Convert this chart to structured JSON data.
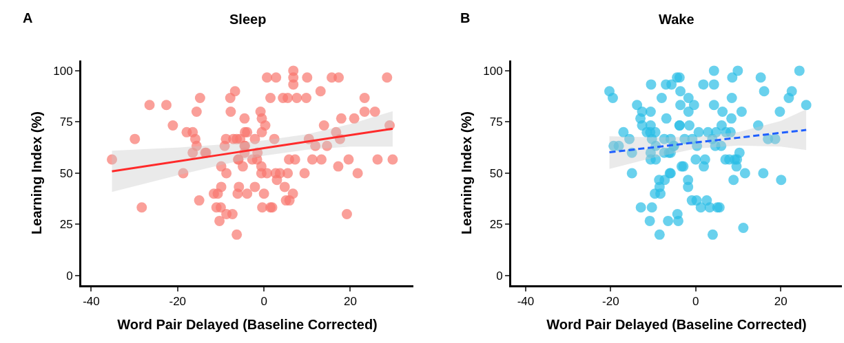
{
  "chart_data": [
    {
      "type": "scatter",
      "title": "Sleep",
      "xlabel": "Word Pair Delayed (Baseline Corrected)",
      "ylabel": "Learning Index (%)",
      "annotations": [
        "A"
      ],
      "xlim": [
        -42.3,
        34.6
      ],
      "ylim": [
        -4.7,
        105
      ],
      "xticks": [
        -40,
        -20,
        0,
        20
      ],
      "yticks": [
        0,
        25,
        50,
        75,
        100
      ],
      "series": [
        {
          "marker": "circle",
          "color": "#f8766d",
          "x": [
            -35.2,
            -29.9,
            -28.3,
            -26.5,
            -22.6,
            -21.1,
            -18.7,
            -17.9,
            -16.5,
            -15.9,
            -15.6,
            -15.6,
            -16.5,
            -15.0,
            -14.8,
            -13.6,
            -13.4,
            -11.6,
            -10.7,
            -11.0,
            -10.0,
            -10.3,
            -8.7,
            -7.3,
            -9.9,
            -9.9,
            -8.7,
            -9.1,
            -8.8,
            -7.8,
            -7.7,
            -6.7,
            -7.1,
            -6.3,
            -5.5,
            -6.3,
            -6.0,
            -6.1,
            -5.8,
            -4.9,
            -4.5,
            -4.4,
            -4.4,
            -5.9,
            -3.9,
            -3.9,
            -4.5,
            -4.5,
            -2.7,
            -1.6,
            -2.1,
            -2.1,
            -1.5,
            -0.8,
            -0.5,
            0.3,
            -0.5,
            -0.6,
            -0.6,
            0.7,
            0.0,
            -0.4,
            1.5,
            1.9,
            0.7,
            2.8,
            1.5,
            2.4,
            2.7,
            3.7,
            3.0,
            5.5,
            4.8,
            5.8,
            7.2,
            5.1,
            5.9,
            6.7,
            4.4,
            5.5,
            7.6,
            9.8,
            6.8,
            6.8,
            6.8,
            10.0,
            13.1,
            9.4,
            11.2,
            13.3,
            10.4,
            11.9,
            14.6,
            13.9,
            15.7,
            17.3,
            16.7,
            17.6,
            17.9,
            17.2,
            19.6,
            19.2,
            20.9,
            21.7,
            23.3,
            23.3,
            25.7,
            26.3,
            28.5,
            29.1,
            29.8
          ],
          "values": [
            56.7,
            66.7,
            33.3,
            83.3,
            83.3,
            73.3,
            50,
            70,
            70,
            66.7,
            63.3,
            80,
            60,
            36.7,
            86.7,
            60,
            60,
            40,
            40,
            33.3,
            33.3,
            26.7,
            30,
            30,
            43.3,
            53.3,
            50,
            63.3,
            66.7,
            86.7,
            80,
            90,
            66.7,
            66.7,
            66.7,
            20,
            56.7,
            40,
            43.3,
            53.3,
            76.7,
            70,
            63.3,
            56.7,
            40,
            70,
            63.3,
            60,
            56.7,
            56.7,
            66.7,
            43.3,
            60,
            80,
            76.7,
            73.3,
            70,
            53.3,
            50,
            50,
            40,
            33.3,
            33.3,
            33.3,
            96.7,
            96.7,
            86.7,
            66.7,
            50,
            50,
            46.7,
            50,
            43.3,
            56.7,
            56.7,
            36.7,
            36.7,
            40,
            86.7,
            86.7,
            86.7,
            86.7,
            100,
            96.7,
            93.3,
            96.7,
            90,
            50,
            56.7,
            56.7,
            66.7,
            63.3,
            63.3,
            73.3,
            96.7,
            96.7,
            70,
            66.7,
            76.7,
            53.3,
            56.7,
            30,
            76.7,
            50,
            86.7,
            80,
            80,
            56.7,
            96.7,
            73.3,
            56.7
          ]
        },
        {
          "type": "line",
          "color": "#ff2a2a",
          "line_style": "solid",
          "x": [
            -35.2,
            -20,
            -10,
            0,
            10,
            20,
            29.8
          ],
          "values": [
            50.9,
            55.8,
            59.0,
            62.2,
            65.4,
            68.6,
            71.7
          ],
          "lower": [
            40.8,
            49,
            54,
            58.5,
            61.5,
            63,
            63
          ],
          "upper": [
            61,
            62.5,
            64,
            66,
            69,
            74,
            80.3
          ]
        }
      ]
    },
    {
      "type": "scatter",
      "title": "Wake",
      "xlabel": "Word Pair Delayed (Baseline Corrected)",
      "ylabel": "Learning Index (%)",
      "annotations": [
        "B"
      ],
      "xlim": [
        -43.4,
        34.4
      ],
      "ylim": [
        -4.7,
        105
      ],
      "xticks": [
        -40,
        -20,
        0,
        20
      ],
      "yticks": [
        0,
        25,
        50,
        75,
        100
      ],
      "series": [
        {
          "marker": "circle",
          "color": "#29bde6",
          "x": [
            -20.3,
            -19.5,
            -19.3,
            -18.1,
            -17.0,
            -15.6,
            -15.0,
            -15.0,
            -13.8,
            -12.6,
            -13.0,
            -12.6,
            -10.5,
            -10.6,
            -10.6,
            -11.5,
            -10.7,
            -9.5,
            -10.3,
            -9.4,
            -10.6,
            -10.6,
            -9.4,
            -8.6,
            -7.3,
            -8.5,
            -9.6,
            -8.3,
            -6.1,
            -12.9,
            -10.3,
            -10.8,
            -6.5,
            -4.1,
            -4.3,
            -8.5,
            -8.0,
            -7.0,
            -5.7,
            -4.4,
            -3.8,
            -6.9,
            -7.4,
            -5.9,
            -5.1,
            -7.4,
            -6.3,
            -3.6,
            -3.6,
            -3.8,
            -3.3,
            -3.8,
            -1.5,
            -1.7,
            -0.4,
            -1.7,
            -2.6,
            -0.8,
            -5.2,
            -5.9,
            0.3,
            0.7,
            -5.9,
            -2.9,
            0.0,
            2.2,
            1.9,
            -1.8,
            -1.8,
            -0.9,
            0.2,
            2.6,
            1.2,
            3.3,
            5.1,
            5.6,
            4.0,
            11.2,
            4.3,
            4.3,
            1.8,
            4.3,
            8.6,
            9.9,
            8.5,
            6.3,
            10.8,
            8.4,
            6.1,
            2.9,
            4.8,
            7.1,
            8.2,
            3.9,
            4.6,
            6.0,
            10.3,
            7.0,
            7.9,
            9.2,
            9.7,
            9.6,
            11.6,
            8.9,
            14.7,
            15.3,
            16.1,
            17.0,
            18.7,
            15.9,
            20.1,
            19.8,
            21.9,
            22.6,
            24.4,
            26.0
          ],
          "values": [
            90,
            86.7,
            63.3,
            63.3,
            70,
            66.7,
            60,
            50,
            83.3,
            80,
            76.7,
            73.3,
            93.3,
            80,
            73.3,
            70,
            70,
            70,
            66.7,
            63.3,
            60,
            56.7,
            56.7,
            46.7,
            46.7,
            43.3,
            40,
            40,
            50,
            33.3,
            33.3,
            26.7,
            26.7,
            26.7,
            30,
            20,
            86.7,
            93.3,
            93.3,
            96.7,
            96.7,
            76.7,
            66.7,
            66.7,
            63.3,
            60,
            60,
            90,
            83.3,
            73.3,
            53.3,
            73.3,
            73.3,
            86.7,
            83.3,
            80,
            66.7,
            66.7,
            63.3,
            60,
            63.3,
            70,
            50,
            53.3,
            56.7,
            56.7,
            53.3,
            46.7,
            43.3,
            36.7,
            36.7,
            36.7,
            33.3,
            33.3,
            33.3,
            33.3,
            20,
            23.3,
            100,
            93.3,
            93.3,
            83.3,
            96.7,
            100,
            86.7,
            80,
            80,
            76.7,
            73.3,
            70,
            70,
            70,
            70,
            66.7,
            63.3,
            63.3,
            60,
            56.7,
            56.7,
            56.7,
            56.7,
            53.3,
            50,
            46.7,
            73.3,
            96.7,
            90,
            66.7,
            66.7,
            50,
            46.7,
            80,
            86.7,
            90,
            100,
            83.3
          ]
        },
        {
          "type": "line",
          "color": "#1f5fff",
          "line_style": "dashed",
          "x": [
            -20.3,
            -10,
            0,
            10,
            20,
            26.0
          ],
          "values": [
            60.2,
            62.6,
            65.0,
            67.3,
            69.7,
            71.1
          ],
          "lower": [
            52.1,
            57.5,
            62,
            63.5,
            63,
            61.3
          ],
          "upper": [
            68,
            67.5,
            67.8,
            70,
            75.5,
            81.2
          ]
        }
      ]
    }
  ]
}
